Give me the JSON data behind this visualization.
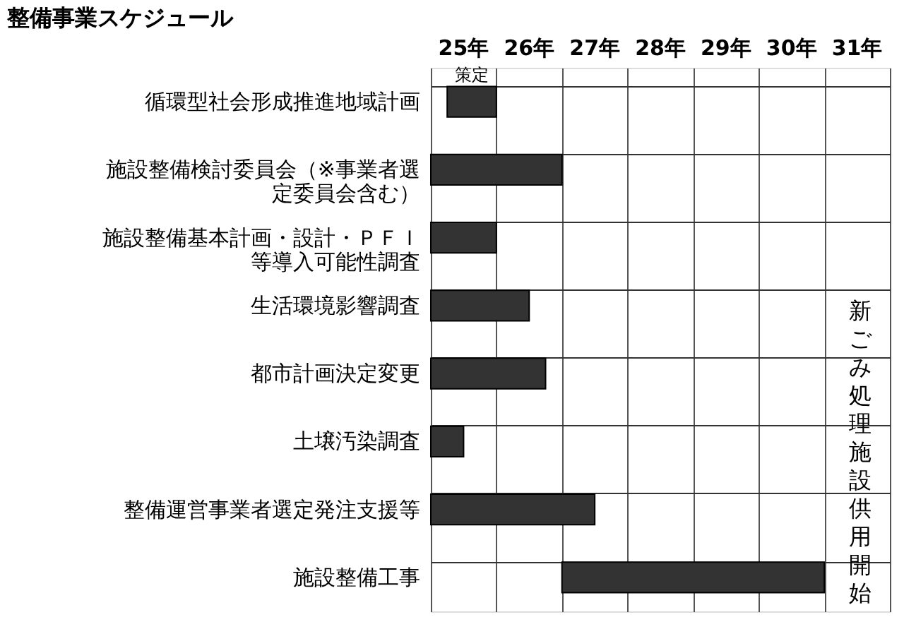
{
  "chart_data": {
    "type": "bar",
    "orientation": "horizontal",
    "title": "整備事業スケジュール",
    "categories": [
      "循環型社会形成推進地域計画",
      "施設整備検討委員会（※事業者選定委員会含む）",
      "施設整備基本計画・設計・ＰＦＩ等導入可能性調査",
      "生活環境影響調査",
      "都市計画決定変更",
      "土壌汚染調査",
      "整備運営事業者選定発注支援等",
      "施設整備工事"
    ],
    "base": [
      25.25,
      25,
      25,
      25,
      25,
      25,
      25,
      27
    ],
    "values": [
      0.75,
      2,
      1,
      1.5,
      1.75,
      0.5,
      2.5,
      4
    ],
    "color": "#333333",
    "xlim": [
      25,
      32
    ],
    "xticks": [
      {
        "value": 25,
        "label": null
      },
      {
        "value": 25.5,
        "label": "25年"
      },
      {
        "value": 26,
        "label": null
      },
      {
        "value": 26.5,
        "label": "26年"
      },
      {
        "value": 27,
        "label": null
      },
      {
        "value": 27.5,
        "label": "27年"
      },
      {
        "value": 28,
        "label": null
      },
      {
        "value": 28.5,
        "label": "28年"
      },
      {
        "value": 29,
        "label": null
      },
      {
        "value": 29.5,
        "label": "29年"
      },
      {
        "value": 30,
        "label": null
      },
      {
        "value": 30.5,
        "label": "30年"
      },
      {
        "value": 31,
        "label": null
      },
      {
        "value": 31.5,
        "label": "31年"
      },
      {
        "value": 32,
        "label": null
      }
    ],
    "grid": true,
    "annotations": [
      "策定",
      "新ごみ処理施設供用開始"
    ]
  }
}
